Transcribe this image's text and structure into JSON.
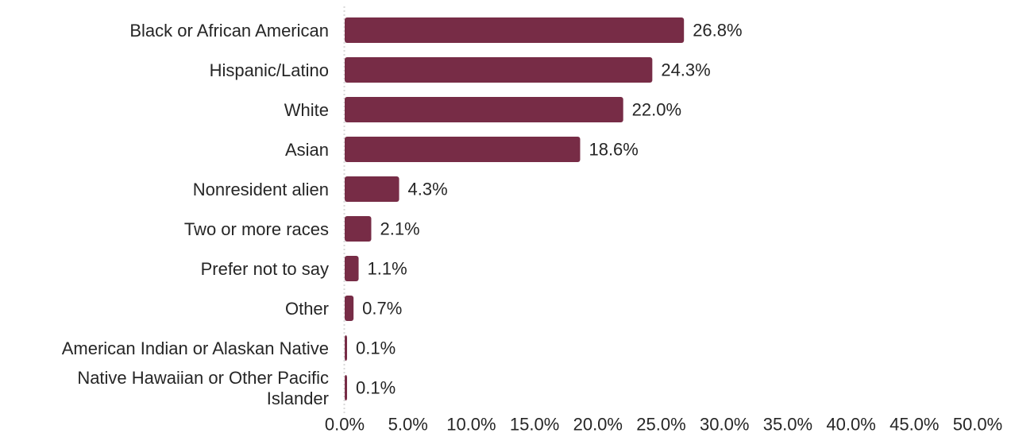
{
  "chart_data": {
    "type": "bar",
    "orientation": "horizontal",
    "title": "",
    "xlabel": "",
    "ylabel": "",
    "categories": [
      "Black or African American",
      "Hispanic/Latino",
      "White",
      "Asian",
      "Nonresident alien",
      "Two or more races",
      "Prefer not to say",
      "Other",
      "American Indian or Alaskan Native",
      "Native Hawaiian or Other Pacific Islander"
    ],
    "category_lines": [
      [
        "Black or African American"
      ],
      [
        "Hispanic/Latino"
      ],
      [
        "White"
      ],
      [
        "Asian"
      ],
      [
        "Nonresident alien"
      ],
      [
        "Two or more races"
      ],
      [
        "Prefer not to say"
      ],
      [
        "Other"
      ],
      [
        "American Indian or Alaskan Native"
      ],
      [
        "Native Hawaiian or Other Pacific",
        "Islander"
      ]
    ],
    "values": [
      26.8,
      24.3,
      22.0,
      18.6,
      4.3,
      2.1,
      1.1,
      0.7,
      0.1,
      0.1
    ],
    "data_labels": [
      "26.8%",
      "24.3%",
      "22.0%",
      "18.6%",
      "4.3%",
      "2.1%",
      "1.1%",
      "0.7%",
      "0.1%",
      "0.1%"
    ],
    "xlim": [
      0,
      50
    ],
    "x_ticks": [
      0,
      5,
      10,
      15,
      20,
      25,
      30,
      35,
      40,
      45,
      50
    ],
    "x_tick_labels": [
      "0.0%",
      "5.0%",
      "10.0%",
      "15.0%",
      "20.0%",
      "25.0%",
      "30.0%",
      "35.0%",
      "40.0%",
      "45.0%",
      "50.0%"
    ],
    "grid": false,
    "legend": "none",
    "bar_color": "#772c46",
    "axis_color": "#d9d9d9"
  }
}
